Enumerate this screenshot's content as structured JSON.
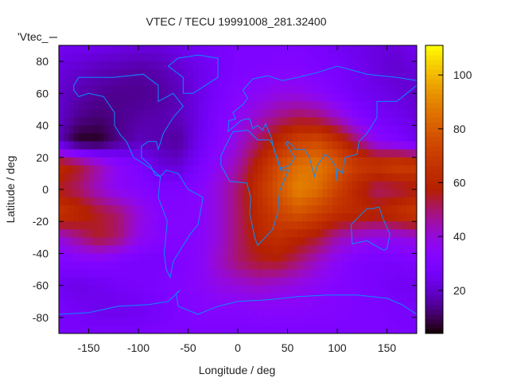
{
  "chart_data": {
    "type": "heatmap",
    "title": "VTEC / TECU 19991008_281.32400",
    "xlabel": "Longitude / deg",
    "ylabel": "Latitude / deg",
    "legend_label": "'Vtec_",
    "xlim": [
      -180,
      180
    ],
    "ylim": [
      -90,
      90
    ],
    "xticks": [
      -150,
      -100,
      -50,
      0,
      50,
      100,
      150
    ],
    "yticks": [
      -80,
      -60,
      -40,
      -20,
      0,
      20,
      40,
      60,
      80
    ],
    "colorbar": {
      "range": [
        4,
        111
      ],
      "ticks": [
        20,
        40,
        60,
        80,
        100
      ],
      "palette": "black-blue-violet-yellow"
    },
    "grid_lon": [
      -180,
      -160,
      -140,
      -120,
      -100,
      -80,
      -60,
      -40,
      -20,
      0,
      20,
      40,
      60,
      80,
      100,
      120,
      140,
      160,
      180
    ],
    "grid_lat": [
      90,
      75,
      60,
      45,
      30,
      15,
      0,
      -15,
      -30,
      -45,
      -60,
      -75,
      -90
    ],
    "values": [
      [
        25,
        25,
        24,
        23,
        22,
        22,
        24,
        26,
        28,
        30,
        30,
        30,
        30,
        28,
        26,
        24,
        22,
        22,
        25
      ],
      [
        22,
        20,
        18,
        17,
        16,
        17,
        20,
        24,
        27,
        30,
        31,
        32,
        32,
        30,
        28,
        25,
        22,
        20,
        22
      ],
      [
        20,
        17,
        15,
        14,
        14,
        15,
        18,
        23,
        28,
        33,
        35,
        38,
        38,
        35,
        30,
        26,
        24,
        22,
        20
      ],
      [
        20,
        14,
        12,
        14,
        16,
        17,
        18,
        23,
        30,
        36,
        42,
        48,
        52,
        50,
        42,
        32,
        27,
        25,
        22
      ],
      [
        18,
        6,
        6,
        14,
        18,
        17,
        15,
        24,
        32,
        40,
        50,
        62,
        72,
        75,
        65,
        50,
        35,
        30,
        25
      ],
      [
        62,
        55,
        45,
        35,
        30,
        22,
        20,
        28,
        36,
        45,
        60,
        75,
        85,
        88,
        80,
        70,
        68,
        72,
        70
      ],
      [
        55,
        50,
        42,
        35,
        33,
        30,
        30,
        33,
        40,
        50,
        65,
        78,
        90,
        85,
        72,
        60,
        50,
        52,
        55
      ],
      [
        68,
        62,
        55,
        50,
        40,
        33,
        32,
        33,
        40,
        50,
        62,
        72,
        78,
        72,
        65,
        62,
        60,
        65,
        70
      ],
      [
        40,
        48,
        55,
        50,
        38,
        33,
        32,
        33,
        40,
        50,
        60,
        65,
        60,
        55,
        45,
        40,
        38,
        38,
        40
      ],
      [
        30,
        32,
        32,
        30,
        28,
        28,
        30,
        34,
        42,
        50,
        55,
        56,
        50,
        42,
        35,
        30,
        28,
        28,
        30
      ],
      [
        25,
        23,
        25,
        27,
        28,
        30,
        32,
        34,
        38,
        40,
        42,
        40,
        38,
        35,
        32,
        30,
        28,
        26,
        25
      ],
      [
        28,
        26,
        24,
        24,
        25,
        27,
        30,
        32,
        33,
        33,
        34,
        34,
        34,
        33,
        32,
        30,
        30,
        28,
        28
      ],
      [
        28,
        28,
        28,
        28,
        28,
        30,
        30,
        30,
        30,
        30,
        30,
        30,
        30,
        30,
        30,
        30,
        30,
        30,
        28
      ]
    ],
    "coastline_color": "#0a8cff",
    "coastlines": [
      [
        [
          -165,
          65
        ],
        [
          -160,
          70
        ],
        [
          -140,
          70
        ],
        [
          -125,
          70
        ],
        [
          -95,
          72
        ],
        [
          -80,
          65
        ],
        [
          -80,
          55
        ],
        [
          -65,
          60
        ],
        [
          -55,
          52
        ],
        [
          -65,
          45
        ],
        [
          -75,
          35
        ],
        [
          -80,
          25
        ],
        [
          -82,
          30
        ],
        [
          -90,
          30
        ],
        [
          -97,
          27
        ],
        [
          -97,
          20
        ],
        [
          -88,
          15
        ],
        [
          -83,
          9
        ],
        [
          -78,
          8
        ],
        [
          -85,
          12
        ],
        [
          -92,
          15
        ],
        [
          -105,
          20
        ],
        [
          -112,
          30
        ],
        [
          -118,
          34
        ],
        [
          -124,
          40
        ],
        [
          -124,
          48
        ],
        [
          -135,
          58
        ],
        [
          -150,
          60
        ],
        [
          -160,
          58
        ],
        [
          -165,
          62
        ],
        [
          -165,
          65
        ]
      ],
      [
        [
          -78,
          8
        ],
        [
          -72,
          12
        ],
        [
          -60,
          10
        ],
        [
          -50,
          0
        ],
        [
          -35,
          -5
        ],
        [
          -40,
          -22
        ],
        [
          -48,
          -28
        ],
        [
          -58,
          -38
        ],
        [
          -65,
          -45
        ],
        [
          -68,
          -55
        ],
        [
          -72,
          -50
        ],
        [
          -74,
          -40
        ],
        [
          -71,
          -20
        ],
        [
          -80,
          -5
        ],
        [
          -78,
          8
        ]
      ],
      [
        [
          -55,
          60
        ],
        [
          -45,
          60
        ],
        [
          -20,
          70
        ],
        [
          -20,
          82
        ],
        [
          -40,
          84
        ],
        [
          -60,
          82
        ],
        [
          -70,
          77
        ],
        [
          -55,
          70
        ],
        [
          -55,
          60
        ]
      ],
      [
        [
          -17,
          15
        ],
        [
          -17,
          21
        ],
        [
          -10,
          30
        ],
        [
          -5,
          36
        ],
        [
          10,
          37
        ],
        [
          20,
          31
        ],
        [
          32,
          31
        ],
        [
          35,
          28
        ],
        [
          43,
          12
        ],
        [
          51,
          12
        ],
        [
          42,
          -1
        ],
        [
          40,
          -15
        ],
        [
          35,
          -25
        ],
        [
          20,
          -35
        ],
        [
          17,
          -30
        ],
        [
          12,
          -15
        ],
        [
          13,
          -5
        ],
        [
          9,
          4
        ],
        [
          -8,
          5
        ],
        [
          -17,
          15
        ]
      ],
      [
        [
          -10,
          36
        ],
        [
          -9,
          43
        ],
        [
          -2,
          44
        ],
        [
          -5,
          48
        ],
        [
          5,
          53
        ],
        [
          10,
          57
        ],
        [
          5,
          62
        ],
        [
          15,
          69
        ],
        [
          30,
          71
        ],
        [
          45,
          68
        ],
        [
          60,
          70
        ],
        [
          80,
          73
        ],
        [
          100,
          77
        ],
        [
          130,
          72
        ],
        [
          160,
          70
        ],
        [
          180,
          68
        ],
        [
          180,
          65
        ],
        [
          170,
          60
        ],
        [
          160,
          55
        ],
        [
          140,
          55
        ],
        [
          140,
          45
        ],
        [
          130,
          35
        ],
        [
          122,
          30
        ],
        [
          120,
          22
        ],
        [
          108,
          20
        ],
        [
          105,
          10
        ],
        [
          100,
          13
        ],
        [
          100,
          5
        ],
        [
          98,
          15
        ],
        [
          92,
          20
        ],
        [
          88,
          22
        ],
        [
          80,
          15
        ],
        [
          77,
          8
        ],
        [
          72,
          20
        ],
        [
          67,
          25
        ],
        [
          57,
          25
        ],
        [
          56,
          27
        ],
        [
          50,
          30
        ],
        [
          48,
          29
        ],
        [
          55,
          22
        ],
        [
          58,
          20
        ],
        [
          52,
          15
        ],
        [
          43,
          13
        ],
        [
          35,
          28
        ],
        [
          34,
          32
        ],
        [
          28,
          41
        ],
        [
          25,
          37
        ],
        [
          20,
          40
        ],
        [
          15,
          38
        ],
        [
          12,
          44
        ],
        [
          8,
          44
        ],
        [
          3,
          43
        ],
        [
          -10,
          36
        ]
      ],
      [
        [
          114,
          -22
        ],
        [
          115,
          -34
        ],
        [
          130,
          -32
        ],
        [
          138,
          -35
        ],
        [
          147,
          -38
        ],
        [
          150,
          -37
        ],
        [
          153,
          -28
        ],
        [
          146,
          -18
        ],
        [
          142,
          -11
        ],
        [
          136,
          -12
        ],
        [
          130,
          -12
        ],
        [
          122,
          -17
        ],
        [
          114,
          -22
        ]
      ],
      [
        [
          -180,
          -78
        ],
        [
          -150,
          -77
        ],
        [
          -120,
          -73
        ],
        [
          -90,
          -72
        ],
        [
          -70,
          -70
        ],
        [
          -58,
          -63
        ],
        [
          -62,
          -65
        ],
        [
          -60,
          -73
        ],
        [
          -40,
          -78
        ],
        [
          -20,
          -73
        ],
        [
          0,
          -70
        ],
        [
          30,
          -69
        ],
        [
          60,
          -67
        ],
        [
          90,
          -66
        ],
        [
          120,
          -66
        ],
        [
          150,
          -68
        ],
        [
          165,
          -72
        ],
        [
          180,
          -78
        ]
      ]
    ]
  }
}
